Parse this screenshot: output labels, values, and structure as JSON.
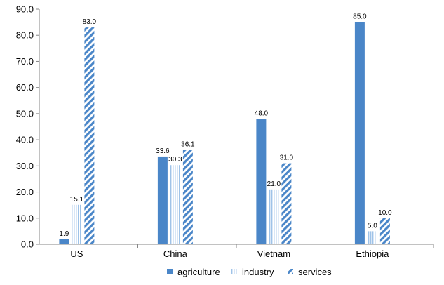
{
  "chart_data": {
    "type": "bar",
    "categories": [
      "US",
      "China",
      "Vietnam",
      "Ethiopia"
    ],
    "series": [
      {
        "name": "agriculture",
        "values": [
          1.9,
          33.6,
          48.0,
          85.0
        ],
        "color": "#4a86c8",
        "pattern": "solid"
      },
      {
        "name": "industry",
        "values": [
          15.1,
          30.3,
          21.0,
          5.0
        ],
        "color": "#9fc3e8",
        "pattern": "vertical-lines"
      },
      {
        "name": "services",
        "values": [
          83.0,
          36.1,
          31.0,
          10.0
        ],
        "color": "#4a86c8",
        "pattern": "diagonal-stripes"
      }
    ],
    "ylim": [
      0,
      90
    ],
    "yticks": [
      "0.0",
      "10.0",
      "20.0",
      "30.0",
      "40.0",
      "50.0",
      "60.0",
      "70.0",
      "80.0",
      "90.0"
    ],
    "value_format": "0.0",
    "legend_position": "bottom",
    "grid": false
  }
}
